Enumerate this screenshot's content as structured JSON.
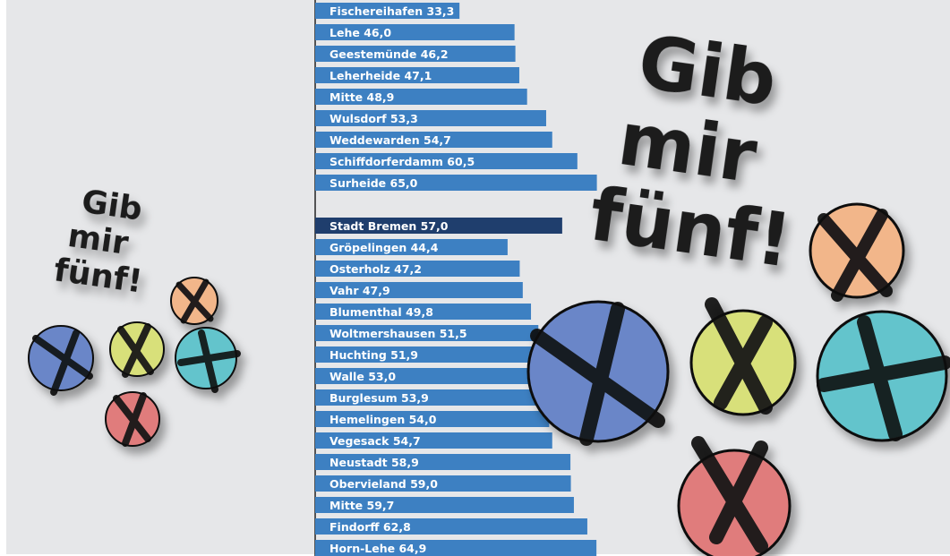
{
  "chart_data": {
    "type": "bar",
    "categories": [
      "Fischereihafen",
      "Lehe",
      "Geestemünde",
      "Leherheide",
      "Mitte",
      "Wulsdorf",
      "Weddewarden",
      "Schiffdorferdamm",
      "Surheide",
      null,
      "Stadt Bremen",
      "Gröpelingen",
      "Osterholz",
      "Vahr",
      "Blumenthal",
      "Woltmershausen",
      "Huchting",
      "Walle",
      "Burglesum",
      "Hemelingen",
      "Vegesack",
      "Neustadt",
      "Obervieland",
      "Mitte",
      "Findorff",
      "Horn-Lehe"
    ],
    "values": [
      33.3,
      46.0,
      46.2,
      47.1,
      48.9,
      53.3,
      54.7,
      60.5,
      65.0,
      null,
      57.0,
      44.4,
      47.2,
      47.9,
      49.8,
      51.5,
      51.9,
      53.0,
      53.9,
      54.0,
      54.7,
      58.9,
      59.0,
      59.7,
      62.8,
      64.9
    ],
    "value_labels": [
      "33,3",
      "46,0",
      "46,2",
      "47,1",
      "48,9",
      "53,3",
      "54,7",
      "60,5",
      "65,0",
      null,
      "57,0",
      "44,4",
      "47,2",
      "47,9",
      "49,8",
      "51,5",
      "51,9",
      "53,0",
      "53,9",
      "54,0",
      "54,7",
      "58,9",
      "59,0",
      "59,7",
      "62,8",
      "64,9"
    ],
    "colors": [
      "#3d80c2",
      "#3d80c2",
      "#3d80c2",
      "#3d80c2",
      "#3d80c2",
      "#3d80c2",
      "#3d80c2",
      "#3d80c2",
      "#3d80c2",
      null,
      "#1f3e6d",
      "#3d80c2",
      "#3d80c2",
      "#3d80c2",
      "#3d80c2",
      "#3d80c2",
      "#3d80c2",
      "#3d80c2",
      "#3d80c2",
      "#3d80c2",
      "#3d80c2",
      "#3d80c2",
      "#3d80c2",
      "#3d80c2",
      "#3d80c2",
      "#3d80c2"
    ],
    "xlim": [
      0,
      100
    ],
    "annotations": [
      [
        "Gib",
        "mir",
        "fünf!"
      ],
      [
        "Gib",
        "mir",
        "fünf!"
      ]
    ]
  }
}
